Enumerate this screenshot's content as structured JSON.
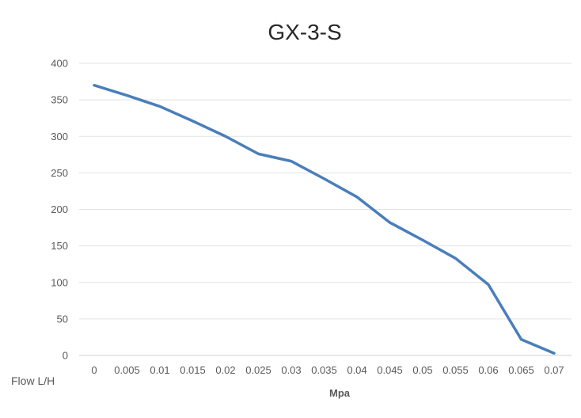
{
  "chart_data": {
    "type": "line",
    "title": "GX-3-S",
    "xlabel": "Mpa",
    "ylabel": "Flow L/H",
    "x": [
      "0",
      "0.005",
      "0.01",
      "0.015",
      "0.02",
      "0.025",
      "0.03",
      "0.035",
      "0.04",
      "0.045",
      "0.05",
      "0.055",
      "0.06",
      "0.065",
      "0.07"
    ],
    "series": [
      {
        "values": [
          370,
          356,
          341,
          321,
          300,
          276,
          266,
          242,
          217,
          182,
          158,
          133,
          97,
          22,
          3
        ],
        "color": "#4a7ebb"
      }
    ],
    "ylim": [
      0,
      400
    ],
    "yticks": [
      0,
      50,
      100,
      150,
      200,
      250,
      300,
      350,
      400
    ],
    "grid": true,
    "legend": "none"
  }
}
